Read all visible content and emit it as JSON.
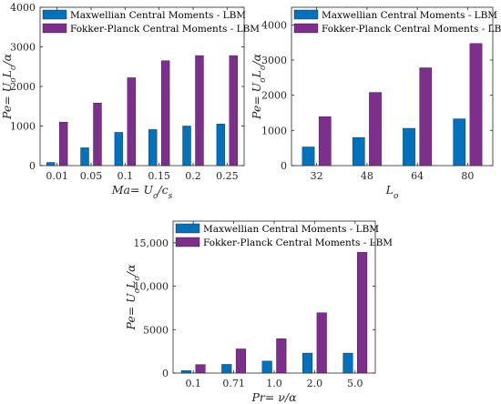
{
  "colors": {
    "maxwellian": "#0072BD",
    "fokker": "#7E2F8E",
    "axis": "#262626"
  },
  "chart_data": [
    {
      "type": "bar",
      "xlabel": "Ma= U_o/c_s",
      "ylabel": "Pe= U_oL_o/α",
      "categories": [
        "0.01",
        "0.05",
        "0.1",
        "0.15",
        "0.2",
        "0.25"
      ],
      "ylim": [
        0,
        4000
      ],
      "yticks": [
        0,
        1000,
        2000,
        3000,
        4000
      ],
      "ytick_labels": [
        "0",
        "1000",
        "2000",
        "3000",
        "4000"
      ],
      "legend_position": "top-left",
      "series": [
        {
          "name": "Maxwellian Central Moments - LBM",
          "values": [
            80,
            450,
            840,
            910,
            1000,
            1050
          ]
        },
        {
          "name": "Fokker-Planck Central Moments - LBM",
          "values": [
            1100,
            1580,
            2220,
            2650,
            2780,
            2780
          ]
        }
      ]
    },
    {
      "type": "bar",
      "xlabel": "L_o",
      "ylabel": "Pe= U_oL_o/α",
      "categories": [
        "32",
        "48",
        "64",
        "80"
      ],
      "ylim": [
        0,
        4500
      ],
      "yticks": [
        0,
        1000,
        2000,
        3000,
        4000
      ],
      "ytick_labels": [
        "0",
        "1000",
        "2000",
        "3000",
        "4000"
      ],
      "legend_position": "top-left",
      "series": [
        {
          "name": "Maxwellian Central Moments - LBM",
          "values": [
            530,
            800,
            1060,
            1330
          ]
        },
        {
          "name": "Fokker-Planck Central Moments - LBM",
          "values": [
            1390,
            2080,
            2780,
            3470
          ]
        }
      ]
    },
    {
      "type": "bar",
      "xlabel": "Pr= ν/α",
      "ylabel": "Pe= U_oL_o/α",
      "categories": [
        "0.1",
        "0.71",
        "1.0",
        "2.0",
        "5.0"
      ],
      "ylim": [
        0,
        17500
      ],
      "yticks": [
        0,
        5000,
        10000,
        15000
      ],
      "ytick_labels": [
        "0",
        "5000",
        "10,000",
        "15,000"
      ],
      "legend_position": "top-left",
      "series": [
        {
          "name": "Maxwellian Central Moments - LBM",
          "values": [
            280,
            1000,
            1380,
            2300,
            2300
          ]
        },
        {
          "name": "Fokker-Planck Central Moments - LBM",
          "values": [
            980,
            2780,
            3950,
            6950,
            13900
          ]
        }
      ]
    }
  ]
}
